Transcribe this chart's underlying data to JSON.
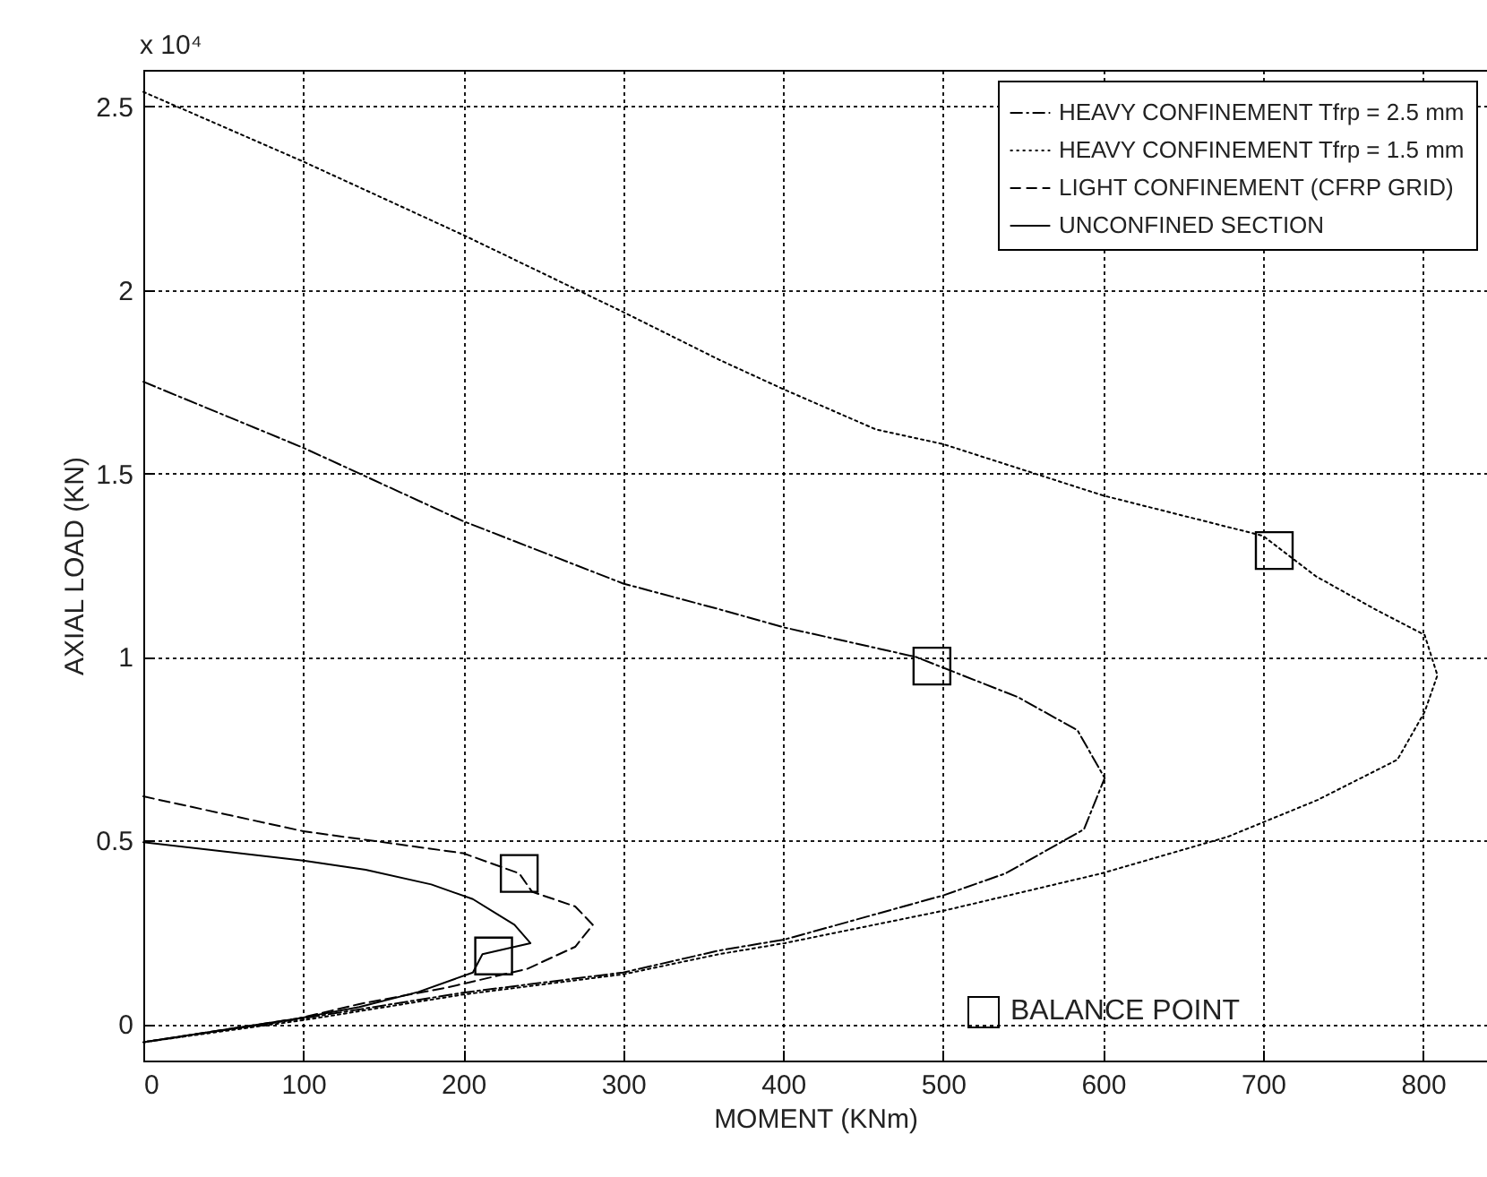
{
  "chart_data": {
    "type": "line",
    "xlabel": "MOMENT (KNm)",
    "ylabel": "AXIAL LOAD (KN)",
    "xlim": [
      0,
      840
    ],
    "xticks": [
      0,
      100,
      200,
      300,
      400,
      500,
      600,
      700,
      800
    ],
    "ylim": [
      -0.1,
      2.6
    ],
    "yticks": [
      0,
      0.5,
      1,
      1.5,
      2,
      2.5
    ],
    "grid": true,
    "legend": "top right",
    "annotations": [
      "x 10⁴"
    ],
    "series": [
      {
        "name": "HEAVY CONFINEMENT Tfrp = 2.5 mm",
        "color": "#000000",
        "line_style": "dashdot",
        "x": [
          0,
          100,
          200,
          300,
          360,
          401,
          483,
          547,
          584,
          601,
          588,
          539,
          500,
          401,
          360,
          300,
          200,
          100,
          0
        ],
        "values": [
          1.75,
          1.57,
          1.37,
          1.2,
          1.13,
          1.08,
          1.0,
          0.89,
          0.8,
          0.67,
          0.53,
          0.41,
          0.35,
          0.23,
          0.2,
          0.14,
          0.085,
          0.015,
          -0.05
        ]
      },
      {
        "name": "HEAVY CONFINEMENT Tfrp = 1.5 mm",
        "color": "#000000",
        "line_style": "dotted",
        "x": [
          0,
          100,
          200,
          300,
          360,
          400,
          458,
          500,
          600,
          700,
          733,
          770,
          801,
          809,
          801,
          784,
          734,
          678,
          599,
          502,
          401,
          360,
          300,
          200,
          100,
          0
        ],
        "values": [
          2.54,
          2.35,
          2.15,
          1.94,
          1.81,
          1.73,
          1.62,
          1.58,
          1.44,
          1.33,
          1.22,
          1.13,
          1.06,
          0.95,
          0.85,
          0.72,
          0.61,
          0.51,
          0.41,
          0.31,
          0.22,
          0.19,
          0.135,
          0.08,
          0.01,
          -0.05
        ]
      },
      {
        "name": "LIGHT CONFINEMENT (CFRP GRID)",
        "color": "#000000",
        "line_style": "dashed",
        "x": [
          0,
          100,
          200,
          235,
          243,
          270,
          281,
          270,
          240,
          191,
          135,
          97,
          0
        ],
        "values": [
          0.62,
          0.525,
          0.465,
          0.41,
          0.36,
          0.32,
          0.27,
          0.21,
          0.15,
          0.1,
          0.054,
          0.015,
          -0.05
        ]
      },
      {
        "name": "UNCONFINED SECTION",
        "color": "#000000",
        "line_style": "solid",
        "x": [
          0,
          100,
          139,
          180,
          206,
          232,
          242,
          212,
          206,
          172,
          135,
          97,
          0
        ],
        "values": [
          0.495,
          0.445,
          0.42,
          0.38,
          0.34,
          0.27,
          0.22,
          0.19,
          0.14,
          0.087,
          0.046,
          0.015,
          -0.05
        ]
      },
      {
        "name": "BALANCE POINT",
        "type": "scatter",
        "marker": "square",
        "color": "#000000",
        "x": [
          235,
          219,
          493,
          707
        ],
        "values": [
          0.41,
          0.185,
          0.975,
          1.29
        ]
      }
    ]
  }
}
